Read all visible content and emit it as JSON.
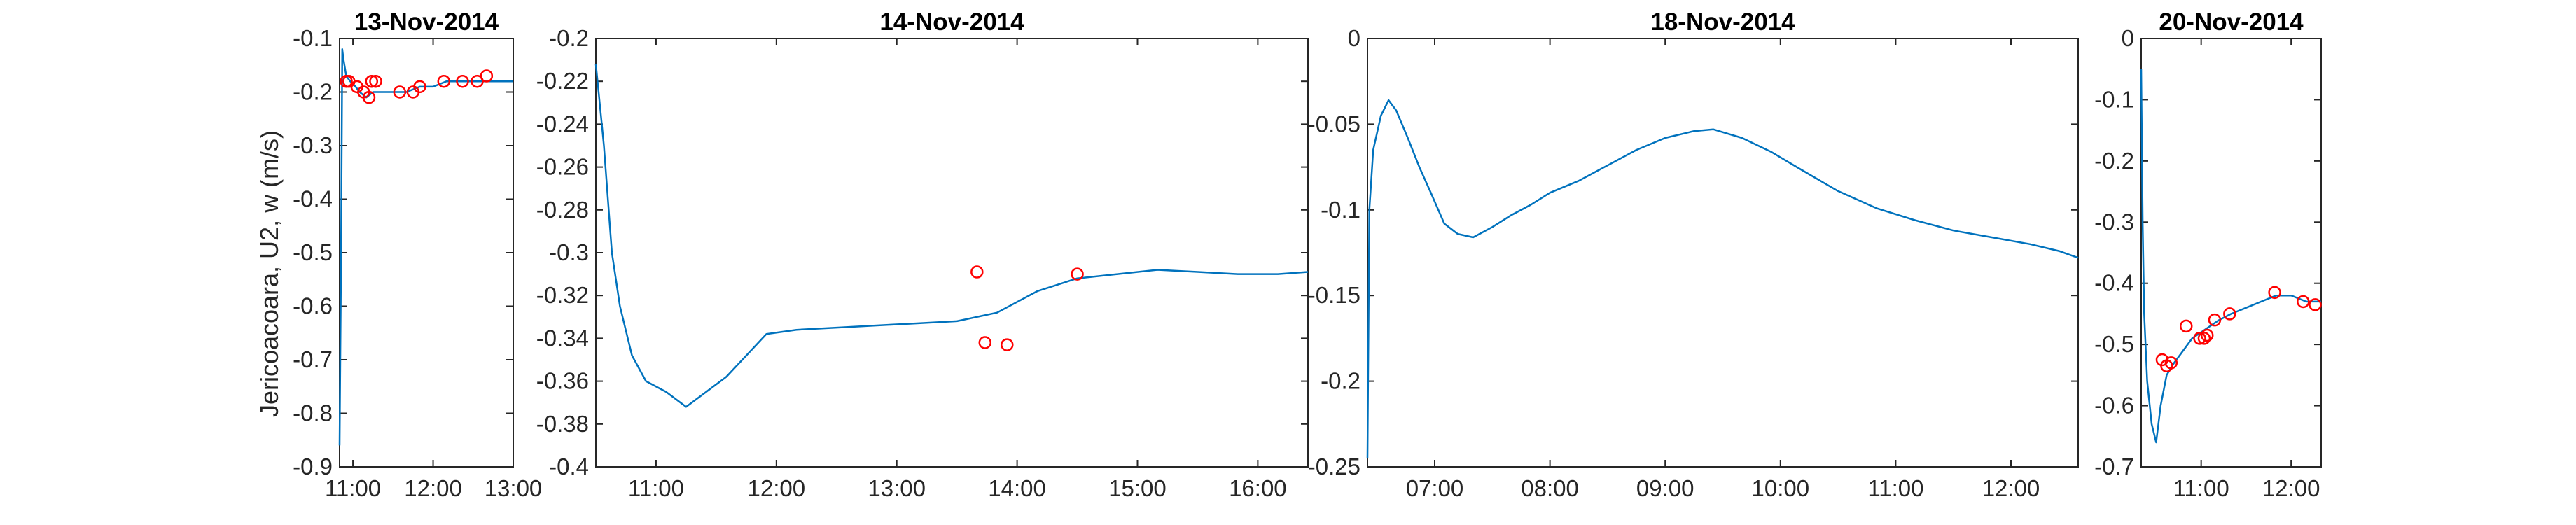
{
  "figure": {
    "ylabel": "Jericoacoara, U2, w (m/s)",
    "colors": {
      "line": "#0072BD",
      "marker": "#FF0000",
      "axis": "#262626"
    }
  },
  "chart_data": [
    {
      "type": "line",
      "title": "13-Nov-2014",
      "xlabel": "",
      "ylabel": "Jericoacoara, U2, w (m/s)",
      "xlim": [
        "10:50",
        "13:00"
      ],
      "ylim": [
        -0.9,
        -0.1
      ],
      "xticks": [
        "11:00",
        "12:00",
        "13:00"
      ],
      "yticks": [
        -0.9,
        -0.8,
        -0.7,
        -0.6,
        -0.5,
        -0.4,
        -0.3,
        -0.2,
        -0.1
      ],
      "series": [
        {
          "values": [
            {
              "x": "10:50",
              "y": -0.86
            },
            {
              "x": "10:51",
              "y": -0.55
            },
            {
              "x": "10:52",
              "y": -0.12
            },
            {
              "x": "10:53",
              "y": -0.14
            },
            {
              "x": "10:55",
              "y": -0.17
            },
            {
              "x": "10:58",
              "y": -0.18
            },
            {
              "x": "11:02",
              "y": -0.19
            },
            {
              "x": "11:05",
              "y": -0.2
            },
            {
              "x": "11:10",
              "y": -0.21
            },
            {
              "x": "11:15",
              "y": -0.2
            },
            {
              "x": "11:20",
              "y": -0.2
            },
            {
              "x": "11:30",
              "y": -0.2
            },
            {
              "x": "11:40",
              "y": -0.2
            },
            {
              "x": "11:50",
              "y": -0.19
            },
            {
              "x": "12:00",
              "y": -0.19
            },
            {
              "x": "12:10",
              "y": -0.18
            },
            {
              "x": "12:20",
              "y": -0.18
            },
            {
              "x": "12:30",
              "y": -0.18
            },
            {
              "x": "12:40",
              "y": -0.18
            },
            {
              "x": "12:50",
              "y": -0.18
            },
            {
              "x": "13:00",
              "y": -0.18
            }
          ]
        },
        {
          "markers": [
            {
              "x": "10:55",
              "y": -0.18
            },
            {
              "x": "10:57",
              "y": -0.18
            },
            {
              "x": "11:03",
              "y": -0.19
            },
            {
              "x": "11:08",
              "y": -0.2
            },
            {
              "x": "11:12",
              "y": -0.21
            },
            {
              "x": "11:14",
              "y": -0.18
            },
            {
              "x": "11:17",
              "y": -0.18
            },
            {
              "x": "11:35",
              "y": -0.2
            },
            {
              "x": "11:45",
              "y": -0.2
            },
            {
              "x": "11:50",
              "y": -0.19
            },
            {
              "x": "12:08",
              "y": -0.18
            },
            {
              "x": "12:22",
              "y": -0.18
            },
            {
              "x": "12:33",
              "y": -0.18
            },
            {
              "x": "12:40",
              "y": -0.17
            }
          ]
        }
      ]
    },
    {
      "type": "line",
      "title": "14-Nov-2014",
      "xlabel": "",
      "ylabel": "",
      "xlim": [
        "10:30",
        "16:25"
      ],
      "ylim": [
        -0.4,
        -0.2
      ],
      "xticks": [
        "11:00",
        "12:00",
        "13:00",
        "14:00",
        "15:00",
        "16:00"
      ],
      "yticks": [
        -0.4,
        -0.38,
        -0.36,
        -0.34,
        -0.32,
        -0.3,
        -0.28,
        -0.26,
        -0.24,
        -0.22,
        -0.2
      ],
      "series": [
        {
          "values": [
            {
              "x": "10:30",
              "y": -0.212
            },
            {
              "x": "10:34",
              "y": -0.25
            },
            {
              "x": "10:38",
              "y": -0.3
            },
            {
              "x": "10:42",
              "y": -0.325
            },
            {
              "x": "10:48",
              "y": -0.348
            },
            {
              "x": "10:55",
              "y": -0.36
            },
            {
              "x": "11:05",
              "y": -0.365
            },
            {
              "x": "11:15",
              "y": -0.372
            },
            {
              "x": "11:25",
              "y": -0.365
            },
            {
              "x": "11:35",
              "y": -0.358
            },
            {
              "x": "11:45",
              "y": -0.348
            },
            {
              "x": "11:55",
              "y": -0.338
            },
            {
              "x": "12:10",
              "y": -0.336
            },
            {
              "x": "12:30",
              "y": -0.335
            },
            {
              "x": "12:50",
              "y": -0.334
            },
            {
              "x": "13:10",
              "y": -0.333
            },
            {
              "x": "13:30",
              "y": -0.332
            },
            {
              "x": "13:50",
              "y": -0.328
            },
            {
              "x": "14:10",
              "y": -0.318
            },
            {
              "x": "14:30",
              "y": -0.312
            },
            {
              "x": "14:50",
              "y": -0.31
            },
            {
              "x": "15:10",
              "y": -0.308
            },
            {
              "x": "15:30",
              "y": -0.309
            },
            {
              "x": "15:50",
              "y": -0.31
            },
            {
              "x": "16:10",
              "y": -0.31
            },
            {
              "x": "16:25",
              "y": -0.309
            }
          ]
        },
        {
          "markers": [
            {
              "x": "13:40",
              "y": -0.309
            },
            {
              "x": "13:44",
              "y": -0.342
            },
            {
              "x": "13:55",
              "y": -0.343
            },
            {
              "x": "14:30",
              "y": -0.31
            }
          ]
        }
      ]
    },
    {
      "type": "line",
      "title": "18-Nov-2014",
      "xlabel": "",
      "ylabel": "",
      "xlim": [
        "06:25",
        "12:35"
      ],
      "ylim": [
        -0.25,
        0
      ],
      "xticks": [
        "07:00",
        "08:00",
        "09:00",
        "10:00",
        "11:00",
        "12:00"
      ],
      "yticks": [
        -0.25,
        -0.2,
        -0.15,
        -0.1,
        -0.05,
        0
      ],
      "series": [
        {
          "values": [
            {
              "x": "06:25",
              "y": -0.245
            },
            {
              "x": "06:26",
              "y": -0.1
            },
            {
              "x": "06:28",
              "y": -0.065
            },
            {
              "x": "06:32",
              "y": -0.045
            },
            {
              "x": "06:36",
              "y": -0.036
            },
            {
              "x": "06:40",
              "y": -0.042
            },
            {
              "x": "06:46",
              "y": -0.058
            },
            {
              "x": "06:52",
              "y": -0.075
            },
            {
              "x": "06:58",
              "y": -0.09
            },
            {
              "x": "07:05",
              "y": -0.108
            },
            {
              "x": "07:12",
              "y": -0.114
            },
            {
              "x": "07:20",
              "y": -0.116
            },
            {
              "x": "07:30",
              "y": -0.11
            },
            {
              "x": "07:40",
              "y": -0.103
            },
            {
              "x": "07:50",
              "y": -0.097
            },
            {
              "x": "08:00",
              "y": -0.09
            },
            {
              "x": "08:15",
              "y": -0.083
            },
            {
              "x": "08:30",
              "y": -0.074
            },
            {
              "x": "08:45",
              "y": -0.065
            },
            {
              "x": "09:00",
              "y": -0.058
            },
            {
              "x": "09:15",
              "y": -0.054
            },
            {
              "x": "09:25",
              "y": -0.053
            },
            {
              "x": "09:40",
              "y": -0.058
            },
            {
              "x": "09:55",
              "y": -0.066
            },
            {
              "x": "10:10",
              "y": -0.076
            },
            {
              "x": "10:30",
              "y": -0.089
            },
            {
              "x": "10:50",
              "y": -0.099
            },
            {
              "x": "11:10",
              "y": -0.106
            },
            {
              "x": "11:30",
              "y": -0.112
            },
            {
              "x": "11:50",
              "y": -0.116
            },
            {
              "x": "12:10",
              "y": -0.12
            },
            {
              "x": "12:25",
              "y": -0.124
            },
            {
              "x": "12:35",
              "y": -0.128
            }
          ]
        }
      ]
    },
    {
      "type": "line",
      "title": "20-Nov-2014",
      "xlabel": "",
      "ylabel": "",
      "xlim": [
        "10:20",
        "12:20"
      ],
      "ylim": [
        -0.7,
        0
      ],
      "xticks": [
        "11:00",
        "12:00"
      ],
      "yticks": [
        -0.7,
        -0.6,
        -0.5,
        -0.4,
        -0.3,
        -0.2,
        -0.1,
        0
      ],
      "series": [
        {
          "values": [
            {
              "x": "10:20",
              "y": -0.05
            },
            {
              "x": "10:21",
              "y": -0.3
            },
            {
              "x": "10:22",
              "y": -0.45
            },
            {
              "x": "10:24",
              "y": -0.56
            },
            {
              "x": "10:27",
              "y": -0.63
            },
            {
              "x": "10:30",
              "y": -0.66
            },
            {
              "x": "10:33",
              "y": -0.6
            },
            {
              "x": "10:37",
              "y": -0.55
            },
            {
              "x": "10:42",
              "y": -0.53
            },
            {
              "x": "10:48",
              "y": -0.51
            },
            {
              "x": "10:54",
              "y": -0.49
            },
            {
              "x": "11:00",
              "y": -0.48
            },
            {
              "x": "11:06",
              "y": -0.47
            },
            {
              "x": "11:12",
              "y": -0.46
            },
            {
              "x": "11:20",
              "y": -0.45
            },
            {
              "x": "11:30",
              "y": -0.44
            },
            {
              "x": "11:40",
              "y": -0.43
            },
            {
              "x": "11:50",
              "y": -0.42
            },
            {
              "x": "12:00",
              "y": -0.42
            },
            {
              "x": "12:10",
              "y": -0.43
            },
            {
              "x": "12:20",
              "y": -0.43
            }
          ]
        },
        {
          "markers": [
            {
              "x": "10:34",
              "y": -0.525
            },
            {
              "x": "10:37",
              "y": -0.535
            },
            {
              "x": "10:40",
              "y": -0.53
            },
            {
              "x": "10:50",
              "y": -0.47
            },
            {
              "x": "10:59",
              "y": -0.49
            },
            {
              "x": "11:02",
              "y": -0.49
            },
            {
              "x": "11:04",
              "y": -0.485
            },
            {
              "x": "11:09",
              "y": -0.46
            },
            {
              "x": "11:19",
              "y": -0.45
            },
            {
              "x": "11:49",
              "y": -0.415
            },
            {
              "x": "12:08",
              "y": -0.43
            },
            {
              "x": "12:16",
              "y": -0.435
            }
          ]
        }
      ]
    }
  ]
}
